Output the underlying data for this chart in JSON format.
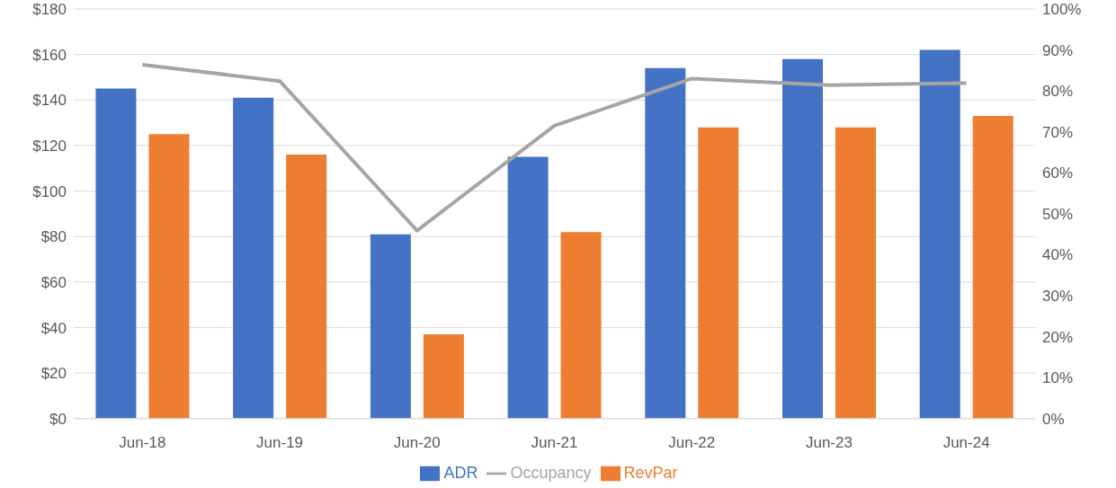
{
  "chart_data": {
    "type": "bar",
    "categories": [
      "Jun-18",
      "Jun-19",
      "Jun-20",
      "Jun-21",
      "Jun-22",
      "Jun-23",
      "Jun-24"
    ],
    "series": [
      {
        "name": "ADR",
        "color": "#4472c4",
        "values": [
          145,
          141,
          81,
          115,
          154,
          158,
          162
        ]
      },
      {
        "name": "RevPar",
        "color": "#ed7d31",
        "values": [
          125,
          116,
          37,
          82,
          128,
          128,
          133
        ]
      },
      {
        "name": "Occupancy",
        "type": "line",
        "axis": "y2",
        "color": "#a5a5a5",
        "values": [
          86.4,
          82.4,
          45.9,
          71.5,
          83,
          81.4,
          81.9
        ]
      }
    ],
    "ylim": [
      0,
      180
    ],
    "yticks": [
      {
        "value": 0,
        "label": "$0"
      },
      {
        "value": 20,
        "label": "$20"
      },
      {
        "value": 40,
        "label": "$40"
      },
      {
        "value": 60,
        "label": "$60"
      },
      {
        "value": 80,
        "label": "$80"
      },
      {
        "value": 100,
        "label": "$100"
      },
      {
        "value": 120,
        "label": "$120"
      },
      {
        "value": 140,
        "label": "$140"
      },
      {
        "value": 160,
        "label": "$160"
      },
      {
        "value": 180,
        "label": "$180"
      }
    ],
    "y2lim": [
      0,
      100
    ],
    "y2ticks": [
      {
        "value": 0,
        "label": "0%"
      },
      {
        "value": 10,
        "label": "10%"
      },
      {
        "value": 20,
        "label": "20%"
      },
      {
        "value": 30,
        "label": "30%"
      },
      {
        "value": 40,
        "label": "40%"
      },
      {
        "value": 50,
        "label": "50%"
      },
      {
        "value": 60,
        "label": "60%"
      },
      {
        "value": 70,
        "label": "70%"
      },
      {
        "value": 80,
        "label": "80%"
      },
      {
        "value": 90,
        "label": "90%"
      },
      {
        "value": 100,
        "label": "100%"
      }
    ],
    "grid": "y",
    "legend": "bottom",
    "marker": "none"
  }
}
